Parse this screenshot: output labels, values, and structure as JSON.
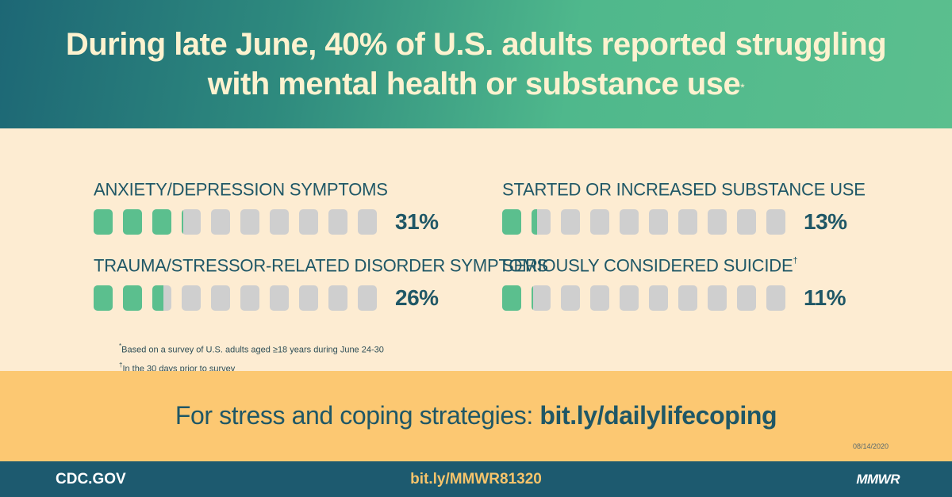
{
  "header": {
    "title_line1": "During late June, 40% of U.S. adults reported struggling",
    "title_line2": "with mental health or substance use",
    "title_mark": "*"
  },
  "chart_data": {
    "type": "bar",
    "units": 10,
    "colors": {
      "filled": "#5bbf8e",
      "empty": "#cfcfcf"
    },
    "items": [
      {
        "label": "ANXIETY/DEPRESSION SYMPTOMS",
        "mark": "",
        "value": 31,
        "display": "31%"
      },
      {
        "label": "TRAUMA/STRESSOR-RELATED DISORDER SYMPTOMS",
        "mark": "",
        "value": 26,
        "display": "26%"
      },
      {
        "label": "STARTED OR INCREASED SUBSTANCE USE",
        "mark": "",
        "value": 13,
        "display": "13%"
      },
      {
        "label": "SERIOUSLY CONSIDERED SUICIDE",
        "mark": "†",
        "value": 11,
        "display": "11%"
      }
    ]
  },
  "notes": {
    "note1_mark": "*",
    "note1": "Based on a survey of U.S. adults aged  ≥18 years during June 24-30",
    "note2_mark": "†",
    "note2": "In the 30 days prior to survey"
  },
  "cta": {
    "prefix": "For stress and coping strategies: ",
    "link": "bit.ly/dailylifecoping",
    "date": "08/14/2020"
  },
  "footer": {
    "site": "CDC.GOV",
    "link": "bit.ly/MMWR81320",
    "brand": "MMWR"
  }
}
